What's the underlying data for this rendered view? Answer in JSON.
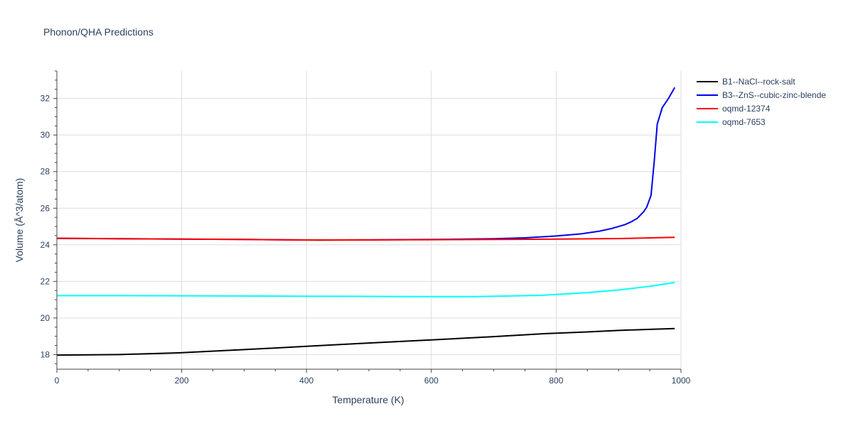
{
  "chart_data": {
    "type": "line",
    "title": "Phonon/QHA Predictions",
    "xlabel": "Temperature (K)",
    "ylabel": "Volume (Å^3/atom)",
    "xlim": [
      0,
      1000
    ],
    "ylim": [
      17.2,
      33.5
    ],
    "x_ticks": [
      0,
      200,
      400,
      600,
      800,
      1000
    ],
    "y_ticks": [
      18,
      20,
      22,
      24,
      26,
      28,
      30,
      32
    ],
    "grid": true,
    "legend_position": "top-right-outside",
    "series": [
      {
        "name": "B1--NaCl--rock-salt",
        "color": "#000000",
        "x": [
          0,
          100,
          200,
          300,
          400,
          500,
          600,
          700,
          780,
          850,
          900,
          950,
          990
        ],
        "y": [
          17.97,
          18.0,
          18.1,
          18.27,
          18.45,
          18.63,
          18.8,
          18.98,
          19.14,
          19.24,
          19.32,
          19.38,
          19.42
        ]
      },
      {
        "name": "B3--ZnS--cubic-zinc-blende",
        "color": "#0000ee",
        "x": [
          0,
          100,
          200,
          300,
          420,
          500,
          600,
          700,
          750,
          800,
          840,
          870,
          890,
          910,
          920,
          930,
          940,
          945,
          952,
          957,
          962,
          970,
          980,
          990
        ],
        "y": [
          24.35,
          24.33,
          24.31,
          24.29,
          24.26,
          24.27,
          24.29,
          24.33,
          24.38,
          24.48,
          24.6,
          24.75,
          24.9,
          25.1,
          25.25,
          25.45,
          25.8,
          26.05,
          26.7,
          28.5,
          30.6,
          31.5,
          32.0,
          32.6
        ]
      },
      {
        "name": "oqmd-12374",
        "color": "#ff0000",
        "x": [
          0,
          100,
          200,
          300,
          420,
          500,
          600,
          700,
          800,
          900,
          990
        ],
        "y": [
          24.36,
          24.33,
          24.31,
          24.29,
          24.26,
          24.27,
          24.28,
          24.29,
          24.31,
          24.34,
          24.41
        ]
      },
      {
        "name": "oqmd-7653",
        "color": "#00ffff",
        "x": [
          0,
          100,
          200,
          300,
          400,
          500,
          600,
          670,
          770,
          850,
          900,
          950,
          990
        ],
        "y": [
          21.22,
          21.22,
          21.21,
          21.2,
          21.19,
          21.18,
          21.17,
          21.17,
          21.23,
          21.38,
          21.53,
          21.73,
          21.94
        ]
      }
    ]
  }
}
